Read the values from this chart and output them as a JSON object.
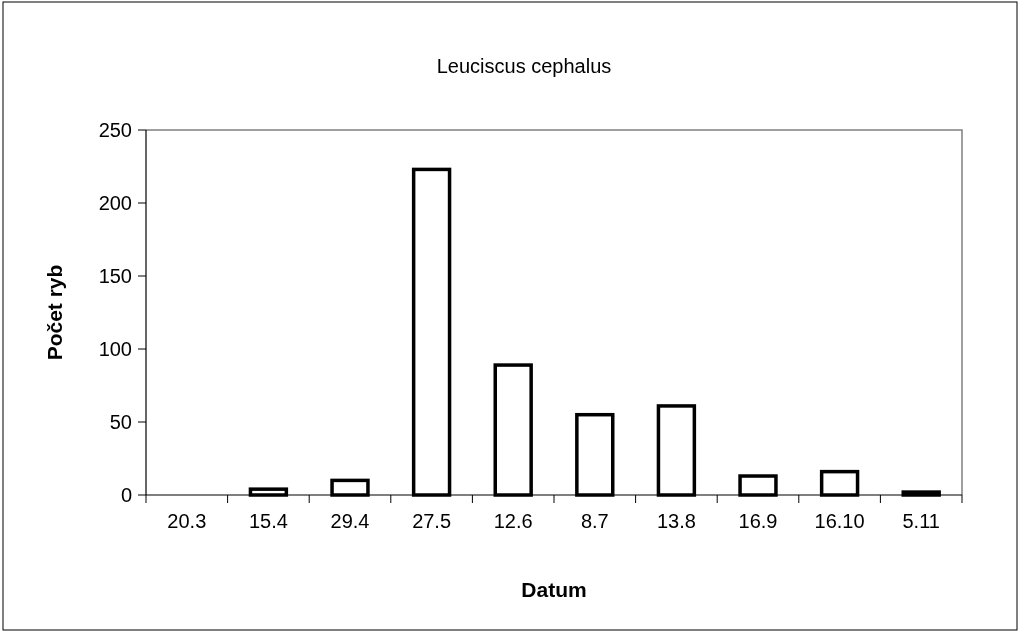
{
  "chart_data": {
    "type": "bar",
    "title": "Leuciscus cephalus",
    "xlabel": "Datum",
    "ylabel": "Počet ryb",
    "categories": [
      "20.3",
      "15.4",
      "29.4",
      "27.5",
      "12.6",
      "8.7",
      "13.8",
      "16.9",
      "16.10",
      "5.11"
    ],
    "values": [
      0,
      4,
      10,
      223,
      89,
      55,
      61,
      13,
      16,
      2
    ],
    "color": "#ffffff",
    "ylim": [
      0,
      250
    ],
    "yticks": [
      0,
      50,
      100,
      150,
      200,
      250
    ],
    "grid": false
  }
}
